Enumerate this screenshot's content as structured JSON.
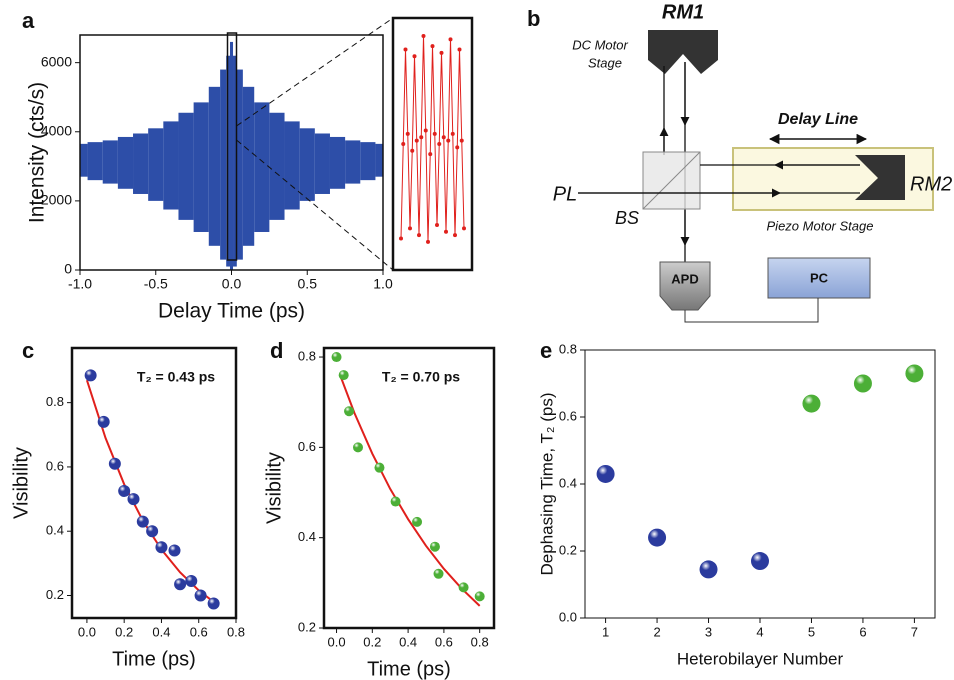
{
  "chart_data": [
    {
      "type": "band",
      "panel": "a",
      "x_label": "Delay Time (ps)",
      "y_label": "Intensity (cts/s)",
      "color": "#2d4ea8",
      "x": [
        -1,
        -0.9,
        -0.8,
        -0.7,
        -0.6,
        -0.5,
        -0.4,
        -0.3,
        -0.2,
        -0.1,
        -0.05,
        -0.02,
        0,
        0.02,
        0.05,
        0.1,
        0.2,
        0.3,
        0.4,
        0.5,
        0.6,
        0.7,
        0.8,
        0.9,
        1
      ],
      "series": [
        {
          "values": [
            3650,
            3700,
            3750,
            3850,
            3950,
            4100,
            4300,
            4550,
            4850,
            5300,
            5800,
            6200,
            6600,
            6200,
            5800,
            5300,
            4850,
            4550,
            4300,
            4100,
            3950,
            3850,
            3750,
            3700,
            3650
          ]
        },
        {
          "values": [
            2700,
            2600,
            2500,
            2350,
            2200,
            2000,
            1750,
            1450,
            1100,
            700,
            300,
            100,
            0,
            100,
            300,
            700,
            1100,
            1450,
            1750,
            2000,
            2200,
            2350,
            2500,
            2600,
            2700
          ]
        }
      ],
      "xlim": [
        -1,
        1
      ],
      "xticks": [
        {
          "value": -1,
          "label": "-1.0"
        },
        -0.5,
        {
          "value": 0,
          "label": "0.0"
        },
        0.5,
        {
          "value": 1,
          "label": "1.0"
        }
      ],
      "ylim": [
        0,
        6800
      ],
      "yticks": [
        0,
        2000,
        4000,
        6000
      ]
    },
    {
      "type": "line",
      "color": "#e0201c",
      "values": [
        400,
        3200,
        6000,
        3500,
        700,
        3000,
        5800,
        3300,
        500,
        3400,
        6400,
        3600,
        300,
        2900,
        6100,
        3500,
        800,
        3200,
        5900,
        3400,
        600,
        3300,
        6300,
        3500,
        500,
        3100,
        6000,
        3300,
        700
      ]
    },
    {
      "type": "scatter",
      "panel": "c",
      "x_label": "Time (ps)",
      "y_label": "Visibility",
      "annotation": "T₂ = 0.43 ps",
      "series": [
        {
          "mode": "markers",
          "color": "#2b3b9e",
          "x": [
            0.02,
            0.09,
            0.15,
            0.2,
            0.25,
            0.3,
            0.35,
            0.4,
            0.47,
            0.5,
            0.56,
            0.61,
            0.68
          ],
          "values": [
            0.885,
            0.74,
            0.61,
            0.525,
            0.5,
            0.43,
            0.4,
            0.35,
            0.34,
            0.235,
            0.245,
            0.2,
            0.175
          ]
        },
        {
          "mode": "line",
          "color": "#e0201c",
          "x": [
            0,
            0.1,
            0.2,
            0.3,
            0.4,
            0.5,
            0.6,
            0.68
          ],
          "values": [
            0.87,
            0.69,
            0.546,
            0.433,
            0.343,
            0.272,
            0.216,
            0.18
          ]
        }
      ],
      "xlim": [
        -0.08,
        0.8
      ],
      "xticks": [
        {
          "value": 0,
          "label": "0.0"
        },
        0.2,
        0.4,
        0.6,
        0.8
      ],
      "ylim": [
        0.13,
        0.97
      ],
      "yticks": [
        0.2,
        0.4,
        0.6,
        0.8
      ]
    },
    {
      "type": "scatter",
      "panel": "d",
      "x_label": "Time (ps)",
      "y_label": "Visibility",
      "annotation": "T₂ = 0.70 ps",
      "series": [
        {
          "mode": "markers",
          "color": "#4caf37",
          "x": [
            0,
            0.04,
            0.07,
            0.12,
            0.24,
            0.33,
            0.45,
            0.55,
            0.57,
            0.71,
            0.8
          ],
          "values": [
            0.8,
            0.76,
            0.68,
            0.6,
            0.555,
            0.48,
            0.435,
            0.38,
            0.32,
            0.29,
            0.27
          ]
        },
        {
          "mode": "line",
          "color": "#e0201c",
          "x": [
            0.02,
            0.1,
            0.2,
            0.3,
            0.4,
            0.5,
            0.6,
            0.7,
            0.8
          ],
          "values": [
            0.76,
            0.676,
            0.586,
            0.508,
            0.441,
            0.382,
            0.331,
            0.287,
            0.249
          ]
        }
      ],
      "xlim": [
        -0.07,
        0.88
      ],
      "xticks": [
        {
          "value": 0,
          "label": "0.0"
        },
        0.2,
        0.4,
        0.6,
        0.8
      ],
      "ylim": [
        0.2,
        0.82
      ],
      "yticks": [
        0.2,
        0.4,
        0.6,
        0.8
      ]
    },
    {
      "type": "scatter",
      "panel": "e",
      "x_label": "Heterobilayer Number",
      "y_label": "Dephasing Time, T₂ (ps)",
      "series": [
        {
          "mode": "markers",
          "color": "#2b3b9e",
          "x": [
            1,
            2,
            3,
            4
          ],
          "values": [
            0.43,
            0.24,
            0.145,
            0.17
          ]
        },
        {
          "mode": "markers",
          "color": "#4caf37",
          "x": [
            5,
            6,
            7
          ],
          "values": [
            0.64,
            0.7,
            0.73
          ]
        }
      ],
      "xlim": [
        0.6,
        7.4
      ],
      "xticks": [
        1,
        2,
        3,
        4,
        5,
        6,
        7
      ],
      "ylim": [
        0,
        0.8
      ],
      "yticks": [
        {
          "value": 0,
          "label": "0.0"
        },
        0.2,
        0.4,
        0.6,
        0.8
      ]
    }
  ],
  "diagram": {
    "panel": "b",
    "labels": {
      "rm1": "RM1",
      "dc1": "DC Motor",
      "dc2": "Stage",
      "delay": "Delay Line",
      "rm2": "RM2",
      "pl": "PL",
      "bs": "BS",
      "piezo": "Piezo Motor Stage",
      "apd": "APD",
      "pc": "PC"
    }
  }
}
